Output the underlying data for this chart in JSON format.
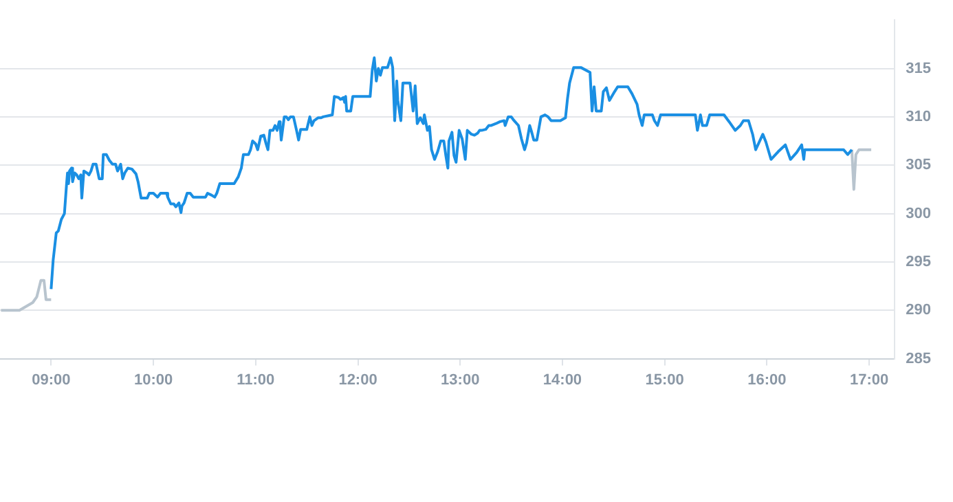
{
  "chart_data": {
    "type": "line",
    "xlim": [
      8.5,
      17.25
    ],
    "xticks": [
      {
        "value": 9,
        "label": "09:00"
      },
      {
        "value": 10,
        "label": "10:00"
      },
      {
        "value": 11,
        "label": "11:00"
      },
      {
        "value": 12,
        "label": "12:00"
      },
      {
        "value": 13,
        "label": "13:00"
      },
      {
        "value": 14,
        "label": "14:00"
      },
      {
        "value": 15,
        "label": "15:00"
      },
      {
        "value": 16,
        "label": "16:00"
      },
      {
        "value": 17,
        "label": "17:00"
      }
    ],
    "ylim": [
      285,
      320
    ],
    "yticks": [
      285,
      290,
      295,
      300,
      305,
      310,
      315
    ],
    "grid": "y",
    "legend": false,
    "marker": "none",
    "line_style": "solid",
    "series": [
      {
        "color": "#b8c4ce",
        "x": [
          8.51,
          8.69,
          8.82,
          8.86,
          8.9,
          8.93,
          8.95,
          9.0
        ],
        "values": [
          290,
          290,
          290.8,
          291.4,
          293.1,
          293.1,
          291.1,
          291.1
        ]
      },
      {
        "color": "#1a8fe3",
        "x": [
          9.0,
          9.02,
          9.05,
          9.07,
          9.1,
          9.13,
          9.15,
          9.16,
          9.17,
          9.18,
          9.2,
          9.21,
          9.23,
          9.25,
          9.27,
          9.29,
          9.3,
          9.32,
          9.35,
          9.37,
          9.39,
          9.41,
          9.44,
          9.47,
          9.5,
          9.51,
          9.54,
          9.57,
          9.6,
          9.63,
          9.65,
          9.68,
          9.7,
          9.72,
          9.75,
          9.79,
          9.83,
          9.85,
          9.88,
          9.94,
          9.96,
          10.0,
          10.04,
          10.07,
          10.13,
          10.14,
          10.17,
          10.2,
          10.22,
          10.25,
          10.27,
          10.28,
          10.3,
          10.33,
          10.36,
          10.39,
          10.51,
          10.53,
          10.57,
          10.6,
          10.62,
          10.65,
          10.79,
          10.83,
          10.86,
          10.88,
          10.93,
          10.95,
          10.97,
          11.0,
          11.02,
          11.05,
          11.08,
          11.1,
          11.12,
          11.14,
          11.17,
          11.19,
          11.21,
          11.23,
          11.24,
          11.25,
          11.28,
          11.3,
          11.32,
          11.34,
          11.37,
          11.4,
          11.42,
          11.44,
          11.5,
          11.53,
          11.55,
          11.57,
          11.61,
          11.64,
          11.66,
          11.75,
          11.77,
          11.81,
          11.83,
          11.86,
          11.87,
          11.88,
          11.89,
          11.93,
          11.95,
          12.12,
          12.14,
          12.16,
          12.18,
          12.2,
          12.22,
          12.24,
          12.29,
          12.32,
          12.34,
          12.36,
          12.38,
          12.39,
          12.42,
          12.44,
          12.51,
          12.54,
          12.56,
          12.58,
          12.61,
          12.64,
          12.65,
          12.68,
          12.7,
          12.72,
          12.75,
          12.78,
          12.81,
          12.84,
          12.86,
          12.88,
          12.89,
          12.92,
          12.94,
          12.96,
          12.99,
          13.02,
          13.05,
          13.07,
          13.11,
          13.14,
          13.17,
          13.19,
          13.21,
          13.25,
          13.28,
          13.3,
          13.35,
          13.39,
          13.43,
          13.44,
          13.47,
          13.5,
          13.52,
          13.57,
          13.6,
          13.63,
          13.65,
          13.68,
          13.7,
          13.72,
          13.75,
          13.79,
          13.83,
          13.86,
          13.89,
          13.98,
          14.03,
          14.05,
          14.07,
          14.11,
          14.18,
          14.27,
          14.29,
          14.31,
          14.33,
          14.38,
          14.4,
          14.43,
          14.46,
          14.51,
          14.54,
          14.64,
          14.68,
          14.73,
          14.75,
          14.78,
          14.8,
          14.88,
          14.9,
          14.93,
          14.96,
          15.3,
          15.32,
          15.35,
          15.37,
          15.41,
          15.44,
          15.58,
          15.63,
          15.69,
          15.74,
          15.77,
          15.82,
          15.86,
          15.89,
          15.96,
          15.99,
          16.04,
          16.11,
          16.18,
          16.23,
          16.29,
          16.34,
          16.36,
          16.37,
          16.75,
          16.79,
          16.83
        ],
        "values": [
          292.2,
          295.2,
          298.0,
          298.2,
          299.4,
          300.0,
          302.9,
          304.2,
          303.1,
          304.4,
          304.7,
          303.3,
          304.2,
          304.0,
          303.6,
          304.0,
          301.6,
          304.4,
          304.2,
          304.0,
          304.4,
          305.1,
          305.1,
          303.6,
          303.6,
          306.1,
          306.1,
          305.5,
          305.1,
          305.1,
          304.4,
          305.1,
          303.6,
          304.2,
          304.7,
          304.6,
          304.1,
          303.3,
          301.6,
          301.6,
          302.1,
          302.1,
          301.7,
          302.1,
          302.1,
          301.7,
          301.0,
          301.0,
          300.7,
          301.1,
          300.1,
          300.8,
          301.1,
          302.1,
          302.1,
          301.7,
          301.7,
          302.1,
          301.9,
          301.7,
          302.1,
          303.1,
          303.1,
          303.8,
          304.7,
          306.1,
          306.1,
          306.6,
          307.5,
          307.2,
          306.6,
          308.0,
          308.1,
          307.3,
          306.6,
          308.6,
          308.6,
          309.1,
          308.6,
          309.5,
          309.1,
          307.6,
          310.0,
          310.0,
          309.7,
          310.0,
          310.0,
          308.6,
          307.6,
          308.7,
          308.7,
          310.0,
          309.1,
          309.6,
          309.9,
          309.9,
          310.0,
          310.2,
          312.1,
          312.0,
          311.8,
          312.0,
          311.5,
          312.1,
          310.6,
          310.6,
          312.1,
          312.1,
          314.8,
          316.1,
          313.7,
          315.0,
          314.3,
          315.1,
          315.1,
          316.1,
          315.1,
          309.6,
          313.7,
          311.7,
          309.6,
          313.5,
          313.5,
          310.6,
          313.2,
          309.3,
          309.9,
          309.3,
          310.2,
          308.6,
          309.0,
          306.6,
          305.6,
          306.4,
          307.5,
          307.5,
          306.0,
          304.7,
          307.5,
          308.4,
          306.0,
          305.3,
          308.6,
          307.7,
          305.6,
          308.6,
          308.2,
          308.1,
          308.3,
          308.6,
          308.6,
          308.7,
          309.1,
          309.1,
          309.3,
          309.5,
          309.6,
          309.1,
          310.0,
          310.0,
          309.7,
          309.1,
          307.7,
          306.6,
          307.3,
          309.1,
          308.4,
          307.6,
          307.6,
          310.0,
          310.2,
          310.0,
          309.6,
          309.6,
          309.9,
          311.9,
          313.5,
          315.1,
          315.1,
          314.6,
          310.6,
          313.1,
          310.6,
          310.6,
          312.6,
          313.0,
          311.7,
          312.6,
          313.1,
          313.1,
          312.4,
          311.3,
          310.2,
          309.1,
          310.2,
          310.2,
          309.6,
          309.1,
          310.2,
          310.2,
          308.6,
          310.2,
          309.1,
          309.1,
          310.2,
          310.2,
          309.5,
          308.6,
          309.1,
          309.6,
          309.6,
          308.2,
          306.6,
          308.2,
          307.4,
          305.6,
          306.4,
          307.1,
          305.6,
          306.3,
          307.1,
          305.6,
          306.6,
          306.6,
          306.1,
          306.6
        ]
      },
      {
        "color": "#b8c4ce",
        "x": [
          16.83,
          16.85,
          16.87,
          16.9,
          17.02
        ],
        "values": [
          306.6,
          302.5,
          306.1,
          306.6,
          306.6
        ]
      }
    ]
  }
}
